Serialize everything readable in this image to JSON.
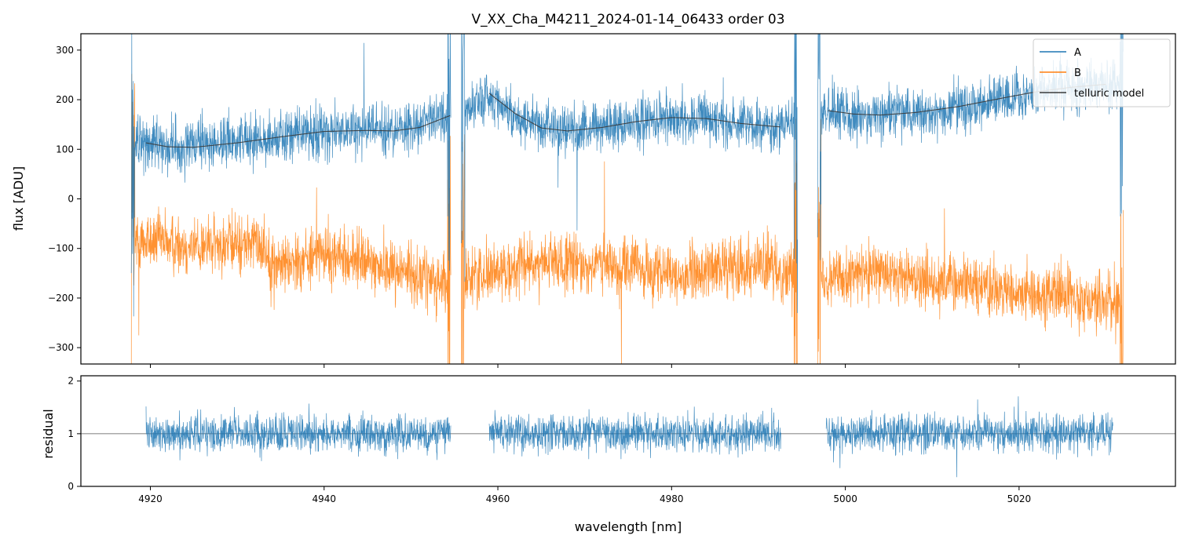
{
  "chart_data": [
    {
      "type": "line",
      "panel": "top",
      "title": "V_XX_Cha_M4211_2024-01-14_06433  order 03",
      "xlabel": "",
      "ylabel": "flux [ADU]",
      "xlim": [
        4912,
        5038
      ],
      "ylim": [
        -333,
        333
      ],
      "yticks": [
        -300,
        -200,
        -100,
        0,
        100,
        200,
        300
      ],
      "ytick_labels": [
        "−300",
        "−200",
        "−100",
        "0",
        "100",
        "200",
        "300"
      ],
      "xticks": [
        4920,
        4940,
        4960,
        4980,
        5000,
        5020
      ],
      "legend_position": "top-right",
      "series": [
        {
          "name": "A",
          "color": "#1f77b4",
          "kind": "noisy-spectrum",
          "x_range": [
            4917.8,
            5032
          ],
          "segments": [
            [
              4917.8,
              4954.6
            ],
            [
              4955.8,
              4994.5
            ],
            [
              4996.8,
              5032
            ]
          ],
          "baseline_points": [
            [
              4919,
              113
            ],
            [
              4924,
              103
            ],
            [
              4930,
              118
            ],
            [
              4940,
              136
            ],
            [
              4948,
              137
            ],
            [
              4954,
              165
            ],
            [
              4959,
              210
            ],
            [
              4962,
              165
            ],
            [
              4968,
              138
            ],
            [
              4975,
              152
            ],
            [
              4980,
              164
            ],
            [
              4986,
              155
            ],
            [
              4992,
              145
            ],
            [
              4998,
              176
            ],
            [
              5004,
              167
            ],
            [
              5010,
              175
            ],
            [
              5018,
              200
            ],
            [
              5024,
              222
            ],
            [
              5031,
              232
            ]
          ],
          "noise_amplitude": 48
        },
        {
          "name": "B",
          "color": "#ff7f0e",
          "kind": "noisy-spectrum",
          "x_range": [
            4917.8,
            5032
          ],
          "segments": [
            [
              4917.8,
              4954.6
            ],
            [
              4955.8,
              4994.5
            ],
            [
              4996.8,
              5032
            ]
          ],
          "baseline_points": [
            [
              4918,
              -80
            ],
            [
              4925,
              -95
            ],
            [
              4933,
              -90
            ],
            [
              4934,
              -135
            ],
            [
              4940,
              -110
            ],
            [
              4948,
              -140
            ],
            [
              4954,
              -170
            ],
            [
              4958,
              -150
            ],
            [
              4965,
              -130
            ],
            [
              4975,
              -135
            ],
            [
              4980,
              -160
            ],
            [
              4988,
              -130
            ],
            [
              4994,
              -150
            ],
            [
              4997,
              -150
            ],
            [
              5005,
              -155
            ],
            [
              5015,
              -170
            ],
            [
              5020,
              -195
            ],
            [
              5024,
              -190
            ],
            [
              5031,
              -210
            ]
          ],
          "noise_amplitude": 55
        },
        {
          "name": "telluric model",
          "color": "#3b3b3b",
          "kind": "smooth",
          "segments": [
            [
              [
                4919.5,
                113
              ],
              [
                4922,
                105
              ],
              [
                4925,
                104
              ],
              [
                4930,
                113
              ],
              [
                4935,
                125
              ],
              [
                4940,
                136
              ],
              [
                4945,
                138
              ],
              [
                4948,
                137
              ],
              [
                4951,
                144
              ],
              [
                4954.5,
                168
              ]
            ],
            [
              [
                4959,
                213
              ],
              [
                4962,
                172
              ],
              [
                4965,
                143
              ],
              [
                4968,
                137
              ],
              [
                4972,
                144
              ],
              [
                4976,
                156
              ],
              [
                4980,
                164
              ],
              [
                4984,
                162
              ],
              [
                4988,
                152
              ],
              [
                4992.5,
                145
              ]
            ],
            [
              [
                4998,
                178
              ],
              [
                5001,
                171
              ],
              [
                5004,
                169
              ],
              [
                5008,
                174
              ],
              [
                5013,
                186
              ],
              [
                5018,
                203
              ],
              [
                5022,
                216
              ],
              [
                5026,
                225
              ],
              [
                5030,
                231
              ]
            ]
          ]
        }
      ]
    },
    {
      "type": "line",
      "panel": "bottom",
      "title": "",
      "xlabel": "wavelength [nm]",
      "ylabel": "residual",
      "xlim": [
        4912,
        5038
      ],
      "ylim": [
        0,
        2.1
      ],
      "yticks": [
        0,
        1,
        2
      ],
      "ytick_labels": [
        "0",
        "1",
        "2"
      ],
      "xticks": [
        4920,
        4940,
        4960,
        4980,
        5000,
        5020
      ],
      "xtick_labels": [
        "4920",
        "4940",
        "4960",
        "4980",
        "5000",
        "5020"
      ],
      "reference_line": 1,
      "series": [
        {
          "name": "residual",
          "color": "#1f77b4",
          "kind": "noisy-residual",
          "segments": [
            [
              4919.5,
              4954.6
            ],
            [
              4959,
              4992.6
            ],
            [
              4997.8,
              5030.8
            ]
          ],
          "center": 1,
          "noise_amplitude": 0.32
        }
      ]
    }
  ]
}
